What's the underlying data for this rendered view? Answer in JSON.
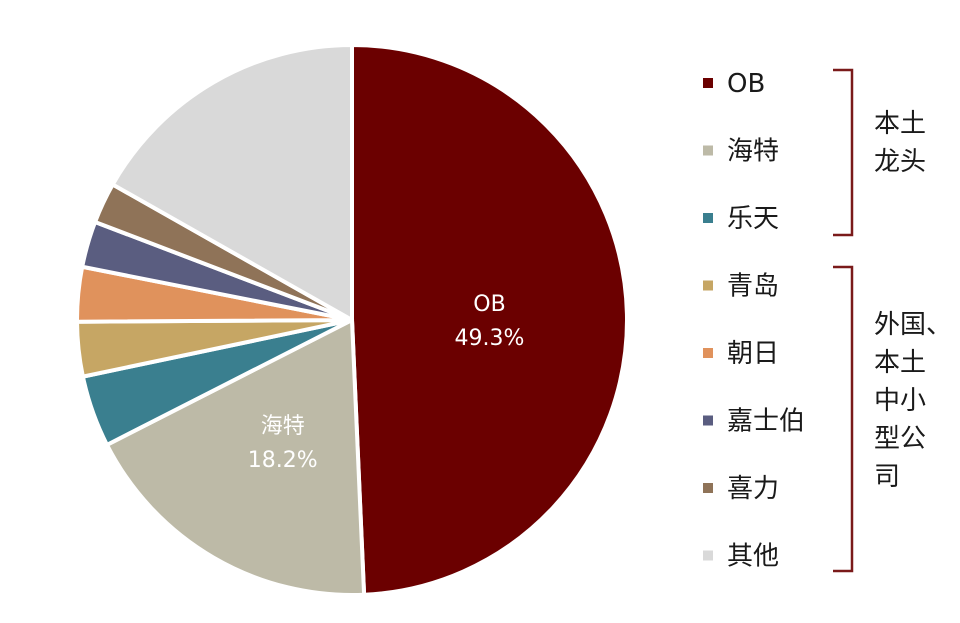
{
  "chart_data": {
    "type": "pie",
    "categories": [
      "OB",
      "海特",
      "乐天",
      "青岛",
      "朝日",
      "嘉士伯",
      "喜力",
      "其他"
    ],
    "values": [
      49.3,
      18.2,
      4.2,
      3.2,
      3.2,
      2.7,
      2.4,
      16.8
    ],
    "colors": [
      "#6b0000",
      "#bdbaa7",
      "#3a7f8f",
      "#c6a664",
      "#e0925c",
      "#5a5d80",
      "#8f7358",
      "#d9d9d9"
    ],
    "data_labels": [
      {
        "category": "OB",
        "name": "OB",
        "value": "49.3%"
      },
      {
        "category": "海特",
        "name": "海特",
        "value": "18.2%"
      }
    ],
    "legend_placement": "right",
    "groups": [
      {
        "label_lines": [
          "本土",
          "龙头"
        ],
        "members": [
          "OB",
          "海特",
          "乐天"
        ]
      },
      {
        "label_lines": [
          "外国、",
          "本土",
          "中小",
          "型公",
          "司"
        ],
        "members": [
          "青岛",
          "朝日",
          "嘉士伯",
          "喜力",
          "其他"
        ]
      }
    ]
  }
}
